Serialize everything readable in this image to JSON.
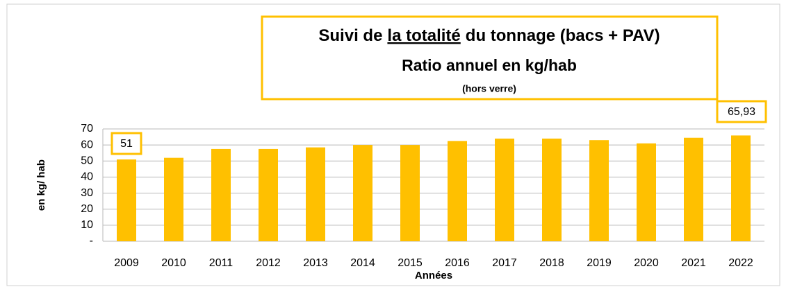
{
  "chart_data": {
    "type": "bar",
    "title": {
      "before": "Suivi de",
      "underlined": "la totalité",
      "after": "du tonnage (bacs + PAV)"
    },
    "subtitle": "Ratio annuel en kg/hab",
    "note": "(hors verre)",
    "x_label": "Années",
    "y_label": "en kg/ hab",
    "categories": [
      "2009",
      "2010",
      "2011",
      "2012",
      "2013",
      "2014",
      "2015",
      "2016",
      "2017",
      "2018",
      "2019",
      "2020",
      "2021",
      "2022"
    ],
    "values": [
      51,
      52,
      57.5,
      57.5,
      58.5,
      60,
      60,
      62.5,
      64,
      64,
      63,
      61,
      64.5,
      65.93
    ],
    "value_labels": [
      "51",
      null,
      null,
      null,
      null,
      null,
      null,
      null,
      null,
      null,
      null,
      null,
      null,
      "65,93"
    ],
    "color": "#ffc000",
    "ylim": [
      0,
      70
    ],
    "yticks": [
      {
        "value": 0,
        "label": "-"
      },
      10,
      20,
      30,
      40,
      50,
      60,
      70
    ],
    "grid": true
  }
}
